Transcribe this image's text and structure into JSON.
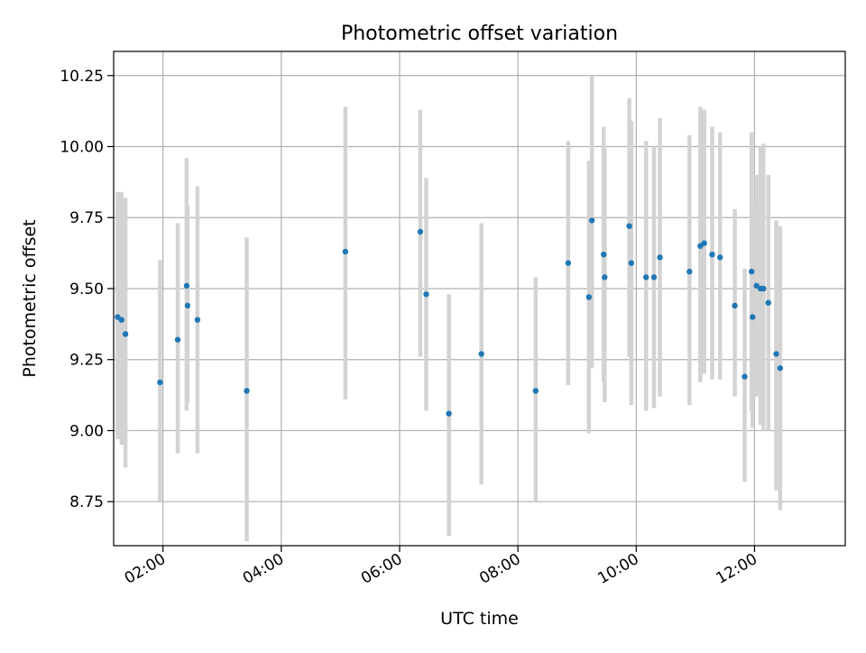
{
  "chart_data": {
    "type": "scatter",
    "title": "Photometric offset variation",
    "xlabel": "UTC time",
    "ylabel": "Photometric offset",
    "x_ticks": [
      "02:00",
      "04:00",
      "06:00",
      "08:00",
      "10:00",
      "12:00"
    ],
    "y_ticks": [
      "8.75",
      "9.00",
      "9.25",
      "9.50",
      "9.75",
      "10.00",
      "10.25"
    ],
    "xlim": [
      "01:10",
      "13:32"
    ],
    "ylim": [
      8.595,
      10.335
    ],
    "grid": true,
    "colors": {
      "point": "#1f77b4",
      "errorbar": "#d3d3d3",
      "grid": "#b0b0b0"
    },
    "points": [
      {
        "x": "01:14",
        "y": 9.4,
        "err_low": 8.97,
        "err_high": 9.84
      },
      {
        "x": "01:18",
        "y": 9.39,
        "err_low": 8.95,
        "err_high": 9.84
      },
      {
        "x": "01:22",
        "y": 9.34,
        "err_low": 8.87,
        "err_high": 9.82
      },
      {
        "x": "01:57",
        "y": 9.17,
        "err_low": 8.75,
        "err_high": 9.6
      },
      {
        "x": "02:15",
        "y": 9.32,
        "err_low": 8.92,
        "err_high": 9.73
      },
      {
        "x": "02:24",
        "y": 9.51,
        "err_low": 9.07,
        "err_high": 9.96
      },
      {
        "x": "02:25",
        "y": 9.44,
        "err_low": 9.1,
        "err_high": 9.79
      },
      {
        "x": "02:35",
        "y": 9.39,
        "err_low": 8.92,
        "err_high": 9.86
      },
      {
        "x": "03:25",
        "y": 9.14,
        "err_low": 8.61,
        "err_high": 9.68
      },
      {
        "x": "05:05",
        "y": 9.63,
        "err_low": 9.11,
        "err_high": 10.14
      },
      {
        "x": "06:21",
        "y": 9.7,
        "err_low": 9.26,
        "err_high": 10.13
      },
      {
        "x": "06:27",
        "y": 9.48,
        "err_low": 9.07,
        "err_high": 9.89
      },
      {
        "x": "06:50",
        "y": 9.06,
        "err_low": 8.63,
        "err_high": 9.48
      },
      {
        "x": "07:23",
        "y": 9.27,
        "err_low": 8.81,
        "err_high": 9.73
      },
      {
        "x": "08:18",
        "y": 9.14,
        "err_low": 8.75,
        "err_high": 9.54
      },
      {
        "x": "08:51",
        "y": 9.59,
        "err_low": 9.16,
        "err_high": 10.02
      },
      {
        "x": "09:12",
        "y": 9.47,
        "err_low": 8.99,
        "err_high": 9.95
      },
      {
        "x": "09:15",
        "y": 9.74,
        "err_low": 9.22,
        "err_high": 10.25
      },
      {
        "x": "09:27",
        "y": 9.62,
        "err_low": 9.17,
        "err_high": 10.07
      },
      {
        "x": "09:28",
        "y": 9.54,
        "err_low": 9.1,
        "err_high": 9.99
      },
      {
        "x": "09:53",
        "y": 9.72,
        "err_low": 9.26,
        "err_high": 10.17
      },
      {
        "x": "09:55",
        "y": 9.59,
        "err_low": 9.09,
        "err_high": 10.09
      },
      {
        "x": "10:10",
        "y": 9.54,
        "err_low": 9.07,
        "err_high": 10.02
      },
      {
        "x": "10:18",
        "y": 9.54,
        "err_low": 9.08,
        "err_high": 10.0
      },
      {
        "x": "10:24",
        "y": 9.61,
        "err_low": 9.12,
        "err_high": 10.1
      },
      {
        "x": "10:54",
        "y": 9.56,
        "err_low": 9.09,
        "err_high": 10.04
      },
      {
        "x": "11:05",
        "y": 9.65,
        "err_low": 9.17,
        "err_high": 10.14
      },
      {
        "x": "11:09",
        "y": 9.66,
        "err_low": 9.2,
        "err_high": 10.13
      },
      {
        "x": "11:17",
        "y": 9.62,
        "err_low": 9.18,
        "err_high": 10.07
      },
      {
        "x": "11:25",
        "y": 9.61,
        "err_low": 9.18,
        "err_high": 10.05
      },
      {
        "x": "11:40",
        "y": 9.44,
        "err_low": 9.12,
        "err_high": 9.78
      },
      {
        "x": "11:50",
        "y": 9.19,
        "err_low": 8.82,
        "err_high": 9.57
      },
      {
        "x": "11:57",
        "y": 9.56,
        "err_low": 9.07,
        "err_high": 10.05
      },
      {
        "x": "11:58",
        "y": 9.4,
        "err_low": 9.01,
        "err_high": 9.8
      },
      {
        "x": "12:02",
        "y": 9.51,
        "err_low": 9.12,
        "err_high": 9.9
      },
      {
        "x": "12:06",
        "y": 9.5,
        "err_low": 9.02,
        "err_high": 10.0
      },
      {
        "x": "12:09",
        "y": 9.5,
        "err_low": 9.0,
        "err_high": 10.01
      },
      {
        "x": "12:14",
        "y": 9.45,
        "err_low": 9.0,
        "err_high": 9.9
      },
      {
        "x": "12:22",
        "y": 9.27,
        "err_low": 8.79,
        "err_high": 9.74
      },
      {
        "x": "12:26",
        "y": 9.22,
        "err_low": 8.72,
        "err_high": 9.72
      }
    ]
  }
}
